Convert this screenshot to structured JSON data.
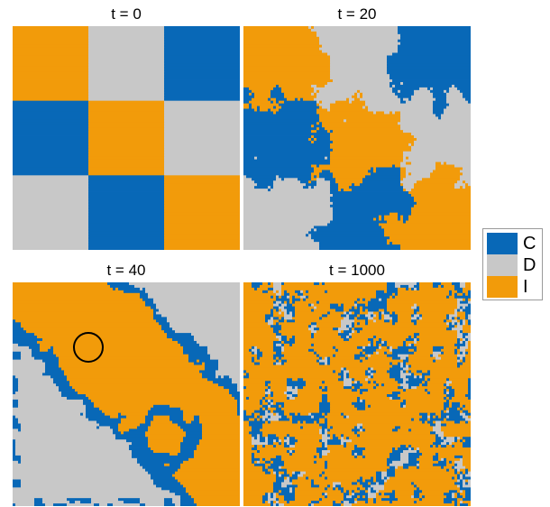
{
  "colors": {
    "C": "#0868b7",
    "D": "#c8c8c8",
    "I": "#f29b0a"
  },
  "panels": [
    {
      "title": "t = 0",
      "pattern": "checkerboard",
      "grid": [
        [
          "I",
          "D",
          "C"
        ],
        [
          "C",
          "I",
          "D"
        ],
        [
          "D",
          "C",
          "I"
        ]
      ]
    },
    {
      "title": "t = 20",
      "pattern": "rough-checkerboard",
      "grid": [
        [
          "I",
          "D",
          "C"
        ],
        [
          "C",
          "I",
          "D"
        ],
        [
          "D",
          "C",
          "I"
        ]
      ]
    },
    {
      "title": "t = 40",
      "pattern": "domains",
      "annotation": "circle"
    },
    {
      "title": "t = 1000",
      "pattern": "mostly-I-with-clusters"
    }
  ],
  "legend": [
    {
      "label": "C",
      "color_key": "C"
    },
    {
      "label": "D",
      "color_key": "D"
    },
    {
      "label": "I",
      "color_key": "I"
    }
  ]
}
